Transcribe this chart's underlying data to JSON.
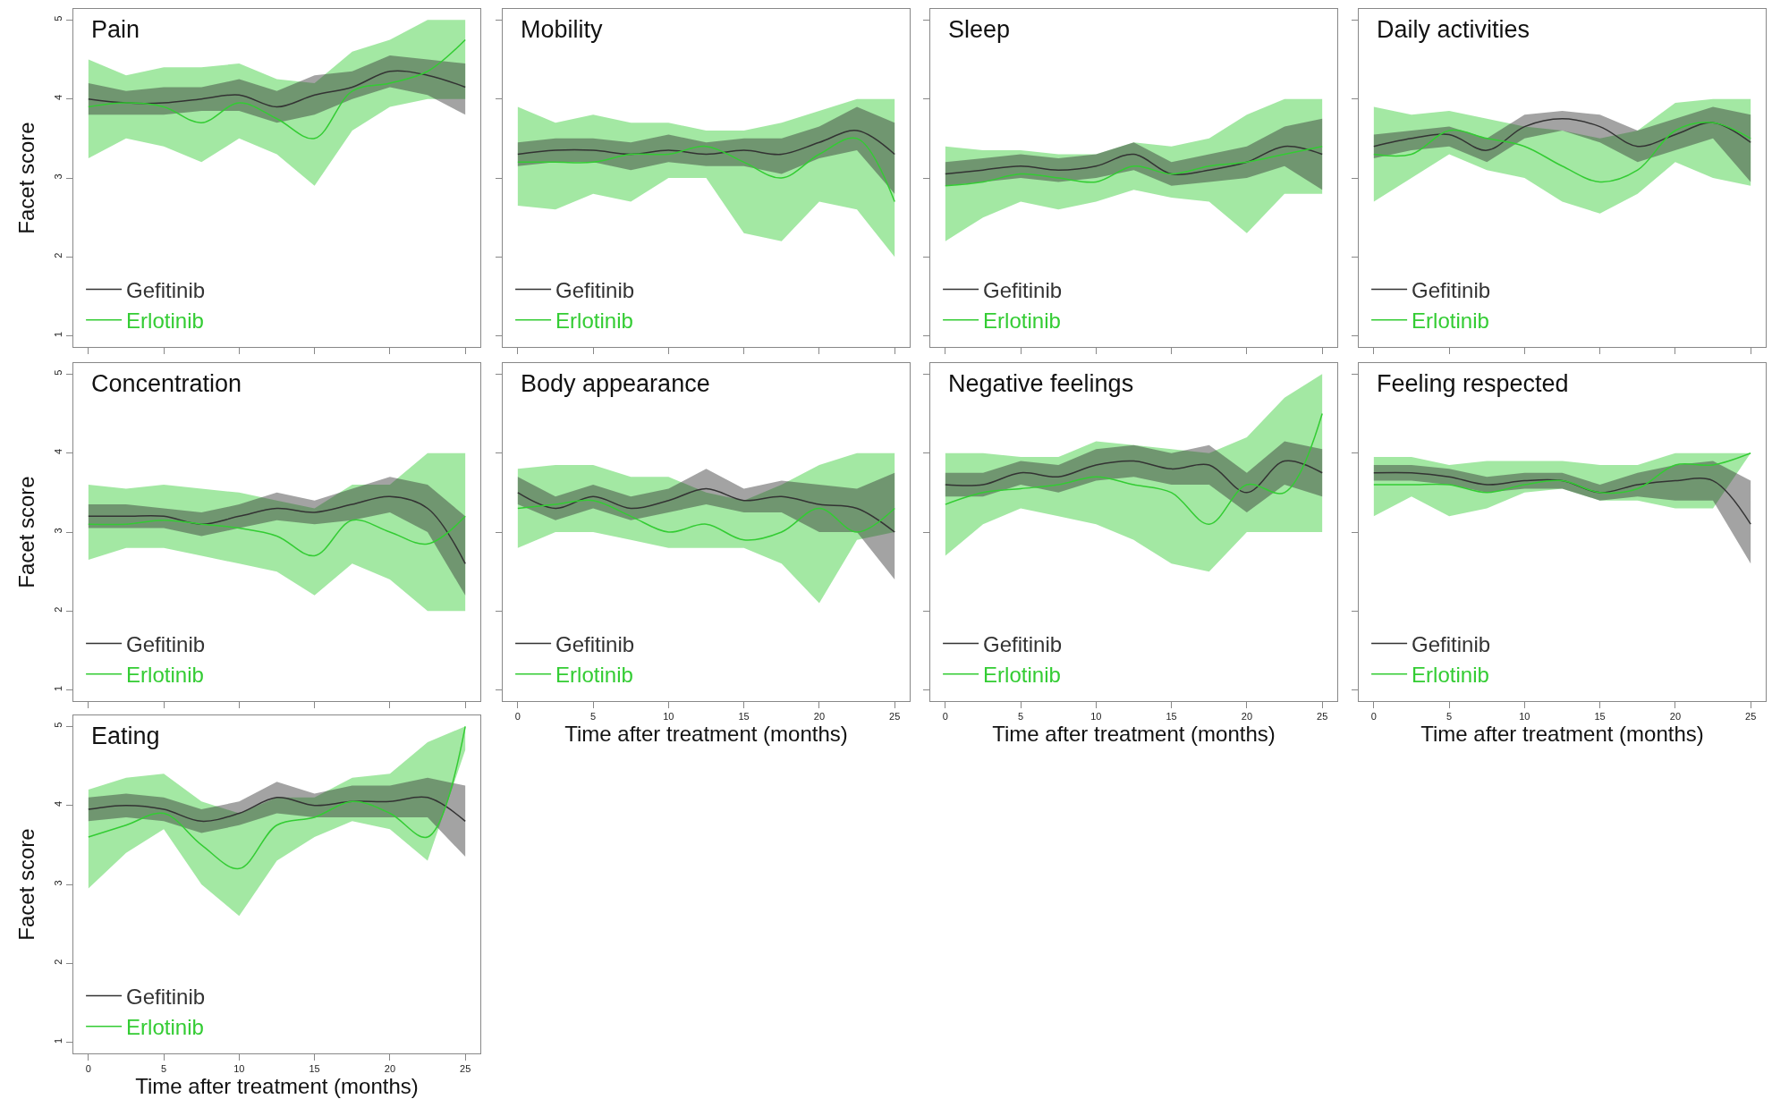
{
  "chart_data": [
    {
      "type": "line",
      "title": "Pain",
      "ylabel": "Facet score",
      "x": [
        0,
        2.5,
        5,
        7.5,
        10,
        12.5,
        15,
        17.5,
        20,
        22.5,
        25
      ],
      "xlim": [
        -1,
        26
      ],
      "xticks": [
        {
          "value": 0,
          "label": null
        },
        {
          "value": 5,
          "label": null
        },
        {
          "value": 10,
          "label": null
        },
        {
          "value": 15,
          "label": null
        },
        {
          "value": 20,
          "label": null
        },
        {
          "value": 25,
          "label": null
        }
      ],
      "ylim": [
        0.86,
        5.14
      ],
      "yticks": [
        1,
        2,
        3,
        4,
        5
      ],
      "tick_labels": "y",
      "legend": "bottom left",
      "series": [
        {
          "name": "Gefitinib",
          "color": "#333333",
          "values": [
            4.0,
            3.95,
            3.95,
            4.0,
            4.05,
            3.9,
            4.05,
            4.15,
            4.35,
            4.3,
            4.15
          ],
          "lower": [
            3.8,
            3.8,
            3.8,
            3.85,
            3.85,
            3.7,
            3.8,
            4.0,
            4.15,
            4.05,
            3.8
          ],
          "upper": [
            4.2,
            4.1,
            4.15,
            4.15,
            4.25,
            4.1,
            4.3,
            4.35,
            4.55,
            4.5,
            4.45
          ]
        },
        {
          "name": "Erlotinib",
          "color": "#33cc33",
          "values": [
            3.9,
            3.95,
            3.9,
            3.7,
            3.95,
            3.75,
            3.5,
            4.1,
            4.2,
            4.35,
            4.75
          ],
          "lower": [
            3.25,
            3.5,
            3.4,
            3.2,
            3.5,
            3.3,
            2.9,
            3.6,
            3.9,
            4.0,
            4.0
          ],
          "upper": [
            4.5,
            4.3,
            4.4,
            4.4,
            4.45,
            4.25,
            4.2,
            4.6,
            4.75,
            5.0,
            5.0
          ]
        }
      ]
    },
    {
      "type": "line",
      "title": "Mobility",
      "x": [
        0,
        2.5,
        5,
        7.5,
        10,
        12.5,
        15,
        17.5,
        20,
        22.5,
        25
      ],
      "xlim": [
        -1,
        26
      ],
      "xticks": [
        {
          "value": 0,
          "label": null
        },
        {
          "value": 5,
          "label": null
        },
        {
          "value": 10,
          "label": null
        },
        {
          "value": 15,
          "label": null
        },
        {
          "value": 20,
          "label": null
        },
        {
          "value": 25,
          "label": null
        }
      ],
      "ylim": [
        0.86,
        5.14
      ],
      "yticks": [
        {
          "value": 1,
          "label": null
        },
        {
          "value": 2,
          "label": null
        },
        {
          "value": 3,
          "label": null
        },
        {
          "value": 4,
          "label": null
        },
        {
          "value": 5,
          "label": null
        }
      ],
      "tick_labels": false,
      "legend": "bottom left",
      "series": [
        {
          "name": "Gefitinib",
          "color": "#333333",
          "values": [
            3.3,
            3.35,
            3.35,
            3.3,
            3.35,
            3.3,
            3.35,
            3.3,
            3.45,
            3.6,
            3.3
          ],
          "lower": [
            3.15,
            3.2,
            3.2,
            3.1,
            3.2,
            3.15,
            3.15,
            3.05,
            3.25,
            3.35,
            2.8
          ],
          "upper": [
            3.45,
            3.5,
            3.5,
            3.45,
            3.55,
            3.45,
            3.5,
            3.5,
            3.65,
            3.9,
            3.7
          ]
        },
        {
          "name": "Erlotinib",
          "color": "#33cc33",
          "values": [
            3.2,
            3.2,
            3.2,
            3.3,
            3.3,
            3.4,
            3.2,
            3.0,
            3.3,
            3.5,
            2.7
          ],
          "lower": [
            2.65,
            2.6,
            2.8,
            2.7,
            3.0,
            3.0,
            2.3,
            2.2,
            2.7,
            2.6,
            2.0
          ],
          "upper": [
            3.9,
            3.7,
            3.8,
            3.7,
            3.7,
            3.6,
            3.6,
            3.7,
            3.85,
            4.0,
            4.0
          ]
        }
      ]
    },
    {
      "type": "line",
      "title": "Sleep",
      "x": [
        0,
        2.5,
        5,
        7.5,
        10,
        12.5,
        15,
        17.5,
        20,
        22.5,
        25
      ],
      "xlim": [
        -1,
        26
      ],
      "xticks": [
        {
          "value": 0,
          "label": null
        },
        {
          "value": 5,
          "label": null
        },
        {
          "value": 10,
          "label": null
        },
        {
          "value": 15,
          "label": null
        },
        {
          "value": 20,
          "label": null
        },
        {
          "value": 25,
          "label": null
        }
      ],
      "ylim": [
        0.86,
        5.14
      ],
      "yticks": [
        {
          "value": 1,
          "label": null
        },
        {
          "value": 2,
          "label": null
        },
        {
          "value": 3,
          "label": null
        },
        {
          "value": 4,
          "label": null
        },
        {
          "value": 5,
          "label": null
        }
      ],
      "tick_labels": false,
      "legend": "bottom left",
      "series": [
        {
          "name": "Gefitinib",
          "color": "#333333",
          "values": [
            3.05,
            3.1,
            3.15,
            3.1,
            3.15,
            3.3,
            3.05,
            3.1,
            3.2,
            3.4,
            3.3
          ],
          "lower": [
            2.9,
            2.95,
            3.0,
            2.95,
            3.0,
            3.1,
            2.9,
            2.95,
            3.0,
            3.15,
            2.85
          ],
          "upper": [
            3.2,
            3.25,
            3.3,
            3.25,
            3.3,
            3.45,
            3.2,
            3.3,
            3.4,
            3.65,
            3.75
          ]
        },
        {
          "name": "Erlotinib",
          "color": "#33cc33",
          "values": [
            2.9,
            2.95,
            3.05,
            3.0,
            2.95,
            3.15,
            3.05,
            3.15,
            3.2,
            3.3,
            3.4
          ],
          "lower": [
            2.2,
            2.5,
            2.7,
            2.6,
            2.7,
            2.85,
            2.75,
            2.7,
            2.3,
            2.8,
            2.8
          ],
          "upper": [
            3.4,
            3.35,
            3.35,
            3.3,
            3.3,
            3.45,
            3.4,
            3.5,
            3.8,
            4.0,
            4.0
          ]
        }
      ]
    },
    {
      "type": "line",
      "title": "Daily activities",
      "x": [
        0,
        2.5,
        5,
        7.5,
        10,
        12.5,
        15,
        17.5,
        20,
        22.5,
        25
      ],
      "xlim": [
        -1,
        26
      ],
      "xticks": [
        {
          "value": 0,
          "label": null
        },
        {
          "value": 5,
          "label": null
        },
        {
          "value": 10,
          "label": null
        },
        {
          "value": 15,
          "label": null
        },
        {
          "value": 20,
          "label": null
        },
        {
          "value": 25,
          "label": null
        }
      ],
      "ylim": [
        0.86,
        5.14
      ],
      "yticks": [
        {
          "value": 1,
          "label": null
        },
        {
          "value": 2,
          "label": null
        },
        {
          "value": 3,
          "label": null
        },
        {
          "value": 4,
          "label": null
        },
        {
          "value": 5,
          "label": null
        }
      ],
      "tick_labels": false,
      "legend": "bottom left",
      "series": [
        {
          "name": "Gefitinib",
          "color": "#333333",
          "values": [
            3.4,
            3.5,
            3.55,
            3.35,
            3.65,
            3.75,
            3.65,
            3.4,
            3.55,
            3.7,
            3.45
          ],
          "lower": [
            3.25,
            3.35,
            3.4,
            3.2,
            3.5,
            3.6,
            3.45,
            3.2,
            3.35,
            3.5,
            2.95
          ],
          "upper": [
            3.55,
            3.6,
            3.65,
            3.5,
            3.8,
            3.85,
            3.8,
            3.6,
            3.75,
            3.9,
            3.8
          ]
        },
        {
          "name": "Erlotinib",
          "color": "#33cc33",
          "values": [
            3.3,
            3.3,
            3.6,
            3.5,
            3.4,
            3.15,
            2.95,
            3.1,
            3.6,
            3.7,
            3.5
          ],
          "lower": [
            2.7,
            3.0,
            3.3,
            3.1,
            3.0,
            2.7,
            2.55,
            2.8,
            3.2,
            3.0,
            2.9
          ],
          "upper": [
            3.9,
            3.8,
            3.85,
            3.75,
            3.65,
            3.6,
            3.5,
            3.6,
            3.95,
            4.0,
            4.0
          ]
        }
      ]
    },
    {
      "type": "line",
      "title": "Concentration",
      "ylabel": "Facet score",
      "x": [
        0,
        2.5,
        5,
        7.5,
        10,
        12.5,
        15,
        17.5,
        20,
        22.5,
        25
      ],
      "xlim": [
        -1,
        26
      ],
      "xticks": [
        {
          "value": 0,
          "label": null
        },
        {
          "value": 5,
          "label": null
        },
        {
          "value": 10,
          "label": null
        },
        {
          "value": 15,
          "label": null
        },
        {
          "value": 20,
          "label": null
        },
        {
          "value": 25,
          "label": null
        }
      ],
      "ylim": [
        0.86,
        5.14
      ],
      "yticks": [
        1,
        2,
        3,
        4,
        5
      ],
      "tick_labels": "y",
      "legend": "bottom left",
      "series": [
        {
          "name": "Gefitinib",
          "color": "#333333",
          "values": [
            3.2,
            3.2,
            3.2,
            3.1,
            3.2,
            3.3,
            3.25,
            3.35,
            3.45,
            3.3,
            2.6
          ],
          "lower": [
            3.05,
            3.05,
            3.05,
            2.95,
            3.05,
            3.15,
            3.1,
            3.15,
            3.25,
            3.0,
            2.2
          ],
          "upper": [
            3.35,
            3.35,
            3.3,
            3.25,
            3.35,
            3.5,
            3.4,
            3.55,
            3.7,
            3.6,
            3.2
          ]
        },
        {
          "name": "Erlotinib",
          "color": "#33cc33",
          "values": [
            3.1,
            3.1,
            3.15,
            3.1,
            3.05,
            2.95,
            2.7,
            3.15,
            3.0,
            2.85,
            3.2
          ],
          "lower": [
            2.65,
            2.8,
            2.8,
            2.7,
            2.6,
            2.5,
            2.2,
            2.6,
            2.4,
            2.0,
            2.0
          ],
          "upper": [
            3.6,
            3.55,
            3.6,
            3.55,
            3.5,
            3.4,
            3.3,
            3.6,
            3.6,
            4.0,
            4.0
          ]
        }
      ]
    },
    {
      "type": "line",
      "title": "Body appearance",
      "xlabel": "Time after treatment (months)",
      "x": [
        0,
        2.5,
        5,
        7.5,
        10,
        12.5,
        15,
        17.5,
        20,
        22.5,
        25
      ],
      "xlim": [
        -1,
        26
      ],
      "xticks": [
        0,
        5,
        10,
        15,
        20,
        25
      ],
      "ylim": [
        0.86,
        5.14
      ],
      "yticks": [
        {
          "value": 1,
          "label": null
        },
        {
          "value": 2,
          "label": null
        },
        {
          "value": 3,
          "label": null
        },
        {
          "value": 4,
          "label": null
        },
        {
          "value": 5,
          "label": null
        }
      ],
      "tick_labels": "x",
      "legend": "bottom left",
      "series": [
        {
          "name": "Gefitinib",
          "color": "#333333",
          "values": [
            3.5,
            3.3,
            3.45,
            3.3,
            3.4,
            3.55,
            3.4,
            3.45,
            3.35,
            3.3,
            3.0
          ],
          "lower": [
            3.35,
            3.15,
            3.3,
            3.15,
            3.25,
            3.35,
            3.25,
            3.25,
            3.0,
            3.0,
            2.4
          ],
          "upper": [
            3.7,
            3.45,
            3.6,
            3.45,
            3.55,
            3.8,
            3.55,
            3.65,
            3.6,
            3.55,
            3.75
          ]
        },
        {
          "name": "Erlotinib",
          "color": "#33cc33",
          "values": [
            3.3,
            3.35,
            3.4,
            3.2,
            3.0,
            3.1,
            2.9,
            3.0,
            3.3,
            3.0,
            3.3
          ],
          "lower": [
            2.8,
            3.0,
            3.0,
            2.9,
            2.8,
            2.8,
            2.8,
            2.6,
            2.1,
            2.9,
            3.0
          ],
          "upper": [
            3.8,
            3.85,
            3.85,
            3.7,
            3.7,
            3.5,
            3.4,
            3.6,
            3.85,
            4.0,
            4.0
          ]
        }
      ]
    },
    {
      "type": "line",
      "title": "Negative feelings",
      "xlabel": "Time after treatment (months)",
      "x": [
        0,
        2.5,
        5,
        7.5,
        10,
        12.5,
        15,
        17.5,
        20,
        22.5,
        25
      ],
      "xlim": [
        -1,
        26
      ],
      "xticks": [
        0,
        5,
        10,
        15,
        20,
        25
      ],
      "ylim": [
        0.86,
        5.14
      ],
      "yticks": [
        {
          "value": 1,
          "label": null
        },
        {
          "value": 2,
          "label": null
        },
        {
          "value": 3,
          "label": null
        },
        {
          "value": 4,
          "label": null
        },
        {
          "value": 5,
          "label": null
        }
      ],
      "tick_labels": "x",
      "legend": "bottom left",
      "series": [
        {
          "name": "Gefitinib",
          "color": "#333333",
          "values": [
            3.6,
            3.6,
            3.75,
            3.7,
            3.85,
            3.9,
            3.8,
            3.85,
            3.5,
            3.9,
            3.75
          ],
          "lower": [
            3.45,
            3.45,
            3.6,
            3.5,
            3.65,
            3.7,
            3.6,
            3.6,
            3.25,
            3.6,
            3.45
          ],
          "upper": [
            3.75,
            3.75,
            3.9,
            3.85,
            4.05,
            4.1,
            4.0,
            4.1,
            3.75,
            4.15,
            4.05
          ]
        },
        {
          "name": "Erlotinib",
          "color": "#33cc33",
          "values": [
            3.35,
            3.5,
            3.55,
            3.6,
            3.7,
            3.6,
            3.5,
            3.1,
            3.6,
            3.5,
            4.5
          ],
          "lower": [
            2.7,
            3.1,
            3.3,
            3.2,
            3.1,
            2.9,
            2.6,
            2.5,
            3.0,
            3.0,
            3.0
          ],
          "upper": [
            4.0,
            4.0,
            3.95,
            3.95,
            4.15,
            4.1,
            4.05,
            4.0,
            4.2,
            4.7,
            5.0
          ]
        }
      ]
    },
    {
      "type": "line",
      "title": "Feeling respected",
      "xlabel": "Time after treatment (months)",
      "x": [
        0,
        2.5,
        5,
        7.5,
        10,
        12.5,
        15,
        17.5,
        20,
        22.5,
        25
      ],
      "xlim": [
        -1,
        26
      ],
      "xticks": [
        0,
        5,
        10,
        15,
        20,
        25
      ],
      "ylim": [
        0.86,
        5.14
      ],
      "yticks": [
        {
          "value": 1,
          "label": null
        },
        {
          "value": 2,
          "label": null
        },
        {
          "value": 3,
          "label": null
        },
        {
          "value": 4,
          "label": null
        },
        {
          "value": 5,
          "label": null
        }
      ],
      "tick_labels": "x",
      "legend": "bottom left",
      "series": [
        {
          "name": "Gefitinib",
          "color": "#333333",
          "values": [
            3.75,
            3.75,
            3.7,
            3.6,
            3.65,
            3.65,
            3.5,
            3.6,
            3.65,
            3.65,
            3.1
          ],
          "lower": [
            3.65,
            3.65,
            3.6,
            3.5,
            3.55,
            3.55,
            3.4,
            3.45,
            3.4,
            3.4,
            2.6
          ],
          "upper": [
            3.85,
            3.85,
            3.8,
            3.7,
            3.75,
            3.75,
            3.6,
            3.75,
            3.85,
            3.9,
            3.65
          ]
        },
        {
          "name": "Erlotinib",
          "color": "#33cc33",
          "values": [
            3.6,
            3.6,
            3.6,
            3.5,
            3.6,
            3.65,
            3.5,
            3.55,
            3.85,
            3.85,
            4.0
          ],
          "lower": [
            3.2,
            3.45,
            3.2,
            3.3,
            3.5,
            3.55,
            3.4,
            3.4,
            3.3,
            3.3,
            4.0
          ],
          "upper": [
            3.95,
            3.95,
            3.85,
            3.9,
            3.9,
            3.9,
            3.85,
            3.85,
            4.0,
            4.0,
            4.0
          ]
        }
      ]
    },
    {
      "type": "line",
      "title": "Eating",
      "xlabel": "Time after treatment (months)",
      "ylabel": "Facet score",
      "x": [
        0,
        2.5,
        5,
        7.5,
        10,
        12.5,
        15,
        17.5,
        20,
        22.5,
        25
      ],
      "xlim": [
        -1,
        26
      ],
      "xticks": [
        0,
        5,
        10,
        15,
        20,
        25
      ],
      "ylim": [
        0.86,
        5.14
      ],
      "yticks": [
        1,
        2,
        3,
        4,
        5
      ],
      "legend": "bottom left",
      "series": [
        {
          "name": "Gefitinib",
          "color": "#333333",
          "values": [
            3.95,
            4.0,
            3.95,
            3.8,
            3.9,
            4.1,
            4.0,
            4.05,
            4.05,
            4.1,
            3.8
          ],
          "lower": [
            3.8,
            3.85,
            3.8,
            3.65,
            3.75,
            3.9,
            3.85,
            3.85,
            3.85,
            3.85,
            3.35
          ],
          "upper": [
            4.1,
            4.15,
            4.1,
            3.95,
            4.05,
            4.3,
            4.15,
            4.25,
            4.25,
            4.35,
            4.25
          ]
        },
        {
          "name": "Erlotinib",
          "color": "#33cc33",
          "values": [
            3.6,
            3.75,
            3.9,
            3.5,
            3.2,
            3.75,
            3.85,
            4.05,
            3.9,
            3.6,
            5.0
          ],
          "lower": [
            2.95,
            3.4,
            3.7,
            3.0,
            2.6,
            3.3,
            3.6,
            3.8,
            3.7,
            3.3,
            4.7
          ],
          "upper": [
            4.2,
            4.35,
            4.4,
            4.05,
            3.9,
            4.1,
            4.1,
            4.35,
            4.4,
            4.8,
            5.0
          ]
        }
      ]
    }
  ]
}
